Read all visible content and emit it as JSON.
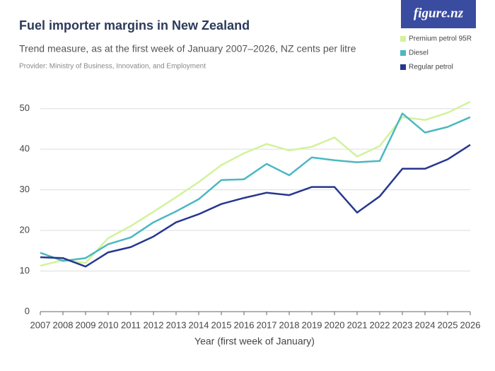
{
  "chart_data": {
    "type": "line",
    "title": "Fuel importer margins in New Zealand",
    "subtitle": "Trend measure, as at the first week of January 2007–2026, NZ cents per litre",
    "provider": "Provider: Ministry of Business, Innovation, and Employment",
    "logo": "figure.nz",
    "x_label": "Year (first week of January)",
    "categories": [
      "2007",
      "2008",
      "2009",
      "2010",
      "2011",
      "2012",
      "2013",
      "2014",
      "2015",
      "2016",
      "2017",
      "2018",
      "2019",
      "2020",
      "2021",
      "2022",
      "2023",
      "2024",
      "2025",
      "2026"
    ],
    "series": [
      {
        "name": "Premium petrol 95R",
        "color": "#d3f29b",
        "values": [
          11.3,
          12.7,
          12.0,
          18.1,
          21.1,
          24.6,
          28.2,
          31.9,
          36.1,
          39.0,
          41.3,
          39.7,
          40.6,
          42.9,
          38.2,
          40.8,
          47.9,
          47.2,
          49.0,
          51.7
        ]
      },
      {
        "name": "Diesel",
        "color": "#4bb8c1",
        "values": [
          14.5,
          12.5,
          13.2,
          16.6,
          18.3,
          22.0,
          24.7,
          27.7,
          32.4,
          32.6,
          36.4,
          33.6,
          38.0,
          37.3,
          36.8,
          37.1,
          48.8,
          44.1,
          45.5,
          47.9
        ]
      },
      {
        "name": "Regular petrol",
        "color": "#27378e",
        "values": [
          13.4,
          13.2,
          11.1,
          14.6,
          15.9,
          18.5,
          22.0,
          24.0,
          26.5,
          28.0,
          29.3,
          28.7,
          30.7,
          30.7,
          24.4,
          28.4,
          35.2,
          35.2,
          37.5,
          41.1
        ]
      }
    ],
    "ylim": [
      0,
      55
    ],
    "yticks": [
      0,
      10,
      20,
      30,
      40,
      50
    ],
    "grid": true
  }
}
